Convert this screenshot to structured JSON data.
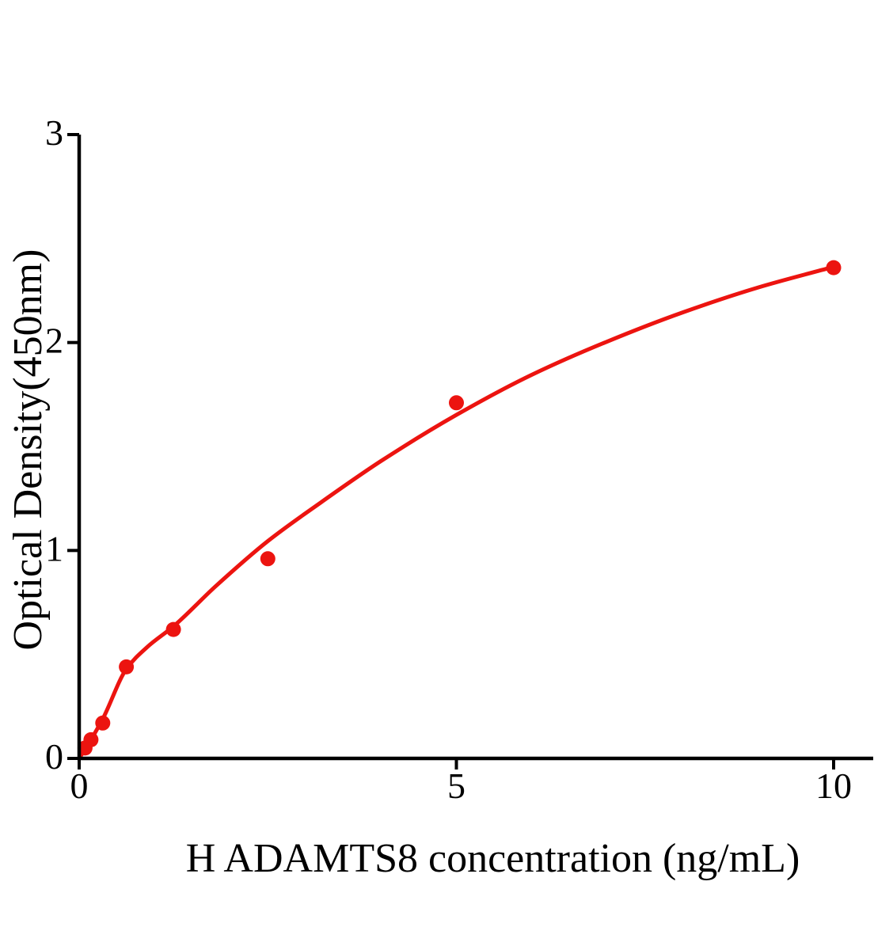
{
  "chart_data": {
    "type": "scatter",
    "title": "",
    "xlabel": "H ADAMTS8 concentration (ng/mL)",
    "ylabel": "Optical Density(450nm)",
    "xlim": [
      0,
      10.55
    ],
    "ylim": [
      0,
      3
    ],
    "x_ticks": [
      0,
      5,
      10
    ],
    "y_ticks": [
      0,
      1,
      2,
      3
    ],
    "grid": false,
    "legend": null,
    "colors": {
      "accent_red": "#ec1410",
      "axis_black": "#000000",
      "background": "#ffffff"
    },
    "series": [
      {
        "name": "standard-data-points",
        "type": "scatter",
        "color": "#ec1410",
        "marker": "circle",
        "marker_radius": 9.5,
        "x": [
          0.078,
          0.156,
          0.313,
          0.625,
          1.25,
          2.5,
          5,
          10
        ],
        "y": [
          0.05,
          0.09,
          0.17,
          0.44,
          0.62,
          0.96,
          1.71,
          2.36
        ]
      },
      {
        "name": "fitted-standard-curve",
        "type": "line",
        "color": "#ec1410",
        "stroke_width": 5,
        "x": [
          0,
          0.156,
          0.313,
          0.625,
          0.9,
          1.25,
          1.8,
          2.5,
          3.2,
          4,
          5,
          6,
          7,
          8,
          9,
          10
        ],
        "y": [
          0,
          0.09,
          0.19,
          0.43,
          0.535,
          0.635,
          0.825,
          1.045,
          1.23,
          1.43,
          1.652,
          1.845,
          2.005,
          2.145,
          2.265,
          2.364
        ]
      }
    ]
  }
}
